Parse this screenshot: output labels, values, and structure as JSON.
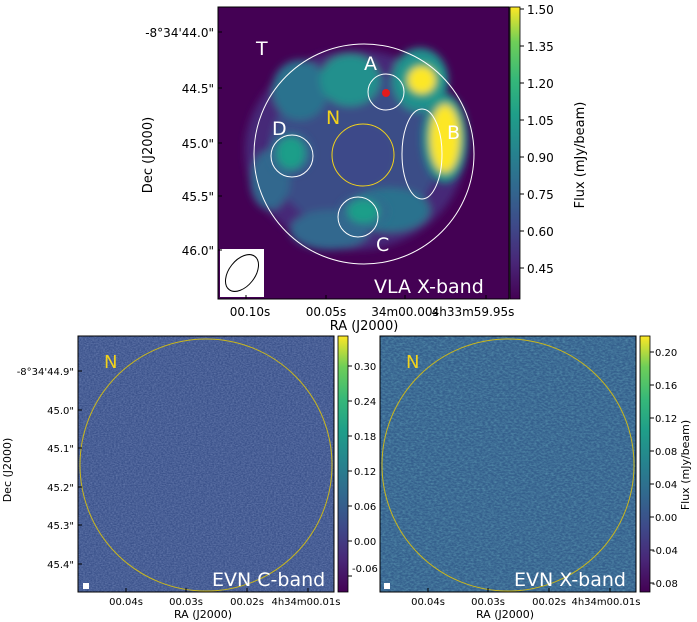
{
  "chart_data": [
    {
      "type": "heatmap",
      "panel_label": "VLA X-band",
      "xlabel": "RA (J2000)",
      "ylabel": "Dec (J2000)",
      "x_ticks": [
        "00.10s",
        "00.05s",
        "34m00.00s",
        "4h33m59.95s"
      ],
      "y_ticks": [
        "-8°34'44.0\"",
        "44.5\"",
        "45.0\"",
        "45.5\"",
        "46.0\""
      ],
      "colorbar": {
        "label": "Flux (mJy/beam)",
        "ticks": [
          "1.50",
          "1.35",
          "1.20",
          "1.05",
          "0.90",
          "0.75",
          "0.60",
          "0.45"
        ],
        "range": [
          0.33,
          1.5
        ]
      },
      "region_labels": [
        "T",
        "A",
        "B",
        "C",
        "D",
        "N"
      ],
      "sources": [
        {
          "label": "A",
          "x": 0.7,
          "y": 0.75,
          "peak": 1.5
        },
        {
          "label": "B",
          "x": 0.78,
          "y": 0.55,
          "peak": 1.45
        },
        {
          "label": "C",
          "x": 0.5,
          "y": 0.3,
          "peak": 1.0
        },
        {
          "label": "D",
          "x": 0.25,
          "y": 0.5,
          "peak": 1.0
        }
      ]
    },
    {
      "type": "heatmap",
      "panel_label": "EVN C-band",
      "xlabel": "RA (J2000)",
      "ylabel": "Dec (J2000)",
      "x_ticks": [
        "00.04s",
        "00.03s",
        "00.02s",
        "4h34m00.01s"
      ],
      "y_ticks": [
        "-8°34'44.9\"",
        "45.0\"",
        "45.1\"",
        "45.2\"",
        "45.3\"",
        "45.4\""
      ],
      "colorbar": {
        "ticks": [
          "0.30",
          "0.24",
          "0.18",
          "0.12",
          "0.06",
          "0.00",
          "-0.06"
        ],
        "range": [
          -0.09,
          0.35
        ]
      },
      "region_labels": [
        "N"
      ]
    },
    {
      "type": "heatmap",
      "panel_label": "EVN X-band",
      "xlabel": "RA (J2000)",
      "x_ticks": [
        "00.04s",
        "00.03s",
        "00.02s",
        "4h34m00.01s"
      ],
      "colorbar": {
        "label": "Flux (mJy/beam)",
        "ticks": [
          "0.20",
          "0.16",
          "0.12",
          "0.08",
          "0.04",
          "0.00",
          "-0.04",
          "-0.08"
        ],
        "range": [
          -0.09,
          0.22
        ]
      },
      "region_labels": [
        "N"
      ]
    }
  ],
  "colors": {
    "viridis_dark": "#440154",
    "viridis_bright": "#fde725",
    "label_yellow": "#f2d21b",
    "region_white": "#ffffff",
    "source_marker": "#e41a1c"
  }
}
